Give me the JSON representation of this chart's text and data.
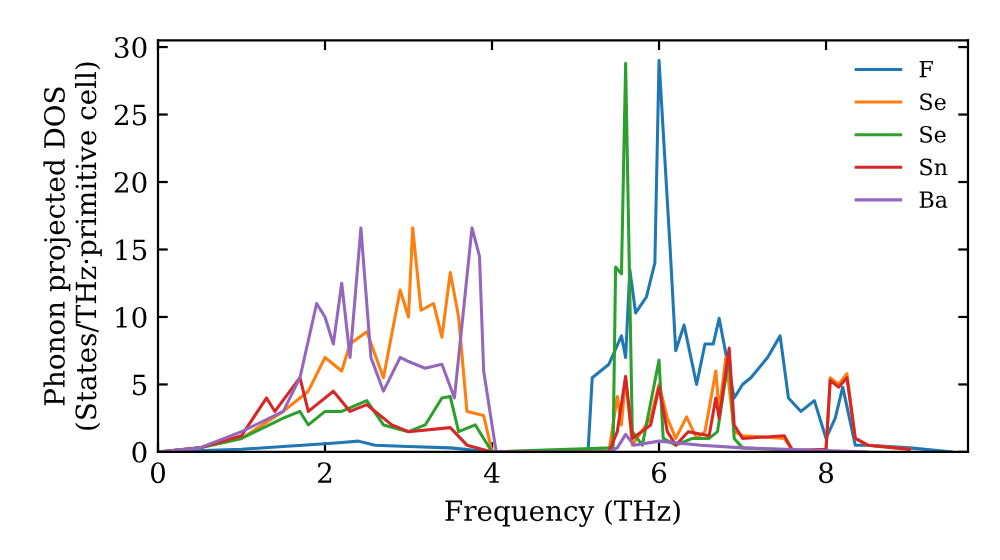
{
  "chart_data": {
    "type": "line",
    "xlabel": "Frequency (THz)",
    "ylabel": "Phonon projected DOS\n(States/THz·primitive cell)",
    "xlim": [
      0,
      9.7
    ],
    "xticks": [
      0,
      2,
      4,
      6,
      8
    ],
    "ylim": [
      0,
      30.5
    ],
    "yticks": [
      0,
      5,
      10,
      15,
      20,
      25,
      30
    ],
    "legend": "top right",
    "grid": false,
    "marker": "none",
    "line_style": "solid",
    "series": [
      {
        "name": "F",
        "color": "#1f77b4",
        "x": [
          0,
          1.0,
          1.5,
          2.0,
          2.2,
          2.4,
          2.6,
          3.0,
          3.5,
          4.0,
          5.15,
          5.2,
          5.4,
          5.55,
          5.6,
          5.65,
          5.72,
          5.85,
          5.95,
          6.0,
          6.13,
          6.2,
          6.3,
          6.45,
          6.55,
          6.65,
          6.72,
          6.9,
          7.0,
          7.1,
          7.3,
          7.45,
          7.55,
          7.7,
          7.86,
          8.0,
          8.11,
          8.2,
          8.35,
          8.5,
          9.0,
          9.5
        ],
        "values": [
          0,
          0.2,
          0.4,
          0.6,
          0.7,
          0.8,
          0.5,
          0.4,
          0.3,
          0,
          0,
          5.5,
          6.5,
          8.6,
          7,
          13.5,
          10.3,
          11.5,
          14,
          29,
          15.4,
          7.5,
          9.4,
          5,
          8,
          8,
          9.9,
          4,
          5,
          5.5,
          7,
          8.6,
          4,
          3,
          3.8,
          1,
          2.5,
          4.8,
          0.5,
          0.5,
          0.3,
          0
        ]
      },
      {
        "name": "Se",
        "color": "#ff7f0e",
        "x": [
          0,
          0.5,
          1.0,
          1.5,
          1.8,
          2.0,
          2.2,
          2.3,
          2.5,
          2.7,
          2.9,
          3.0,
          3.05,
          3.15,
          3.3,
          3.4,
          3.5,
          3.6,
          3.7,
          3.9,
          4.0,
          5.4,
          5.5,
          5.55,
          5.6,
          5.68,
          5.9,
          6.0,
          6.1,
          6.2,
          6.33,
          6.45,
          6.55,
          6.68,
          6.72,
          6.8,
          6.9,
          7.0,
          7.5,
          7.6,
          8.0,
          8.05,
          8.15,
          8.25,
          8.35,
          8.5,
          9.0
        ],
        "values": [
          0,
          0.3,
          1.0,
          3,
          4.5,
          7,
          6,
          8,
          8.9,
          5.5,
          12,
          10,
          16.6,
          10.5,
          11,
          8.5,
          13.3,
          10,
          3,
          2.7,
          0,
          0,
          4.1,
          2,
          5.5,
          0.5,
          2.5,
          5,
          2.5,
          1,
          2.6,
          1,
          1.5,
          6,
          3,
          7,
          1.5,
          1.2,
          1,
          0.1,
          0.1,
          5.5,
          5,
          5.8,
          1,
          0.5,
          0.2
        ]
      },
      {
        "name": "Se",
        "color": "#2ca02c",
        "x": [
          0,
          0.5,
          1.0,
          1.5,
          1.7,
          1.8,
          2.0,
          2.2,
          2.5,
          2.7,
          3.0,
          3.2,
          3.4,
          3.5,
          3.6,
          3.8,
          4.0,
          5.45,
          5.48,
          5.55,
          5.6,
          5.68,
          5.8,
          6.0,
          6.05,
          6.2,
          6.4,
          6.6,
          6.7,
          6.84,
          6.9,
          7.0,
          8.0
        ],
        "values": [
          0,
          0.3,
          1.0,
          2.5,
          3,
          2,
          3,
          3,
          3.8,
          2,
          1.5,
          2,
          4,
          4.1,
          1.5,
          2,
          0,
          0.3,
          13.7,
          13.2,
          28.8,
          1.5,
          0.5,
          6.8,
          1,
          0.5,
          1,
          1,
          1.5,
          7.2,
          1,
          0.3,
          0
        ]
      },
      {
        "name": "Sn",
        "color": "#d62728",
        "x": [
          0,
          0.5,
          1.0,
          1.3,
          1.4,
          1.7,
          1.8,
          2.1,
          2.3,
          2.5,
          2.8,
          3.0,
          3.5,
          3.7,
          4.0,
          5.4,
          5.5,
          5.6,
          5.68,
          5.9,
          6.0,
          6.1,
          6.2,
          6.35,
          6.6,
          6.68,
          6.72,
          6.84,
          6.9,
          7.0,
          7.5,
          7.6,
          8.0,
          8.05,
          8.15,
          8.25,
          8.35,
          8.5,
          9.0
        ],
        "values": [
          0,
          0.3,
          1.2,
          4,
          3,
          5.5,
          3,
          4.5,
          3,
          3.5,
          2,
          1.5,
          1.8,
          0.5,
          0,
          0,
          1.5,
          5.6,
          1,
          2,
          4.8,
          1.5,
          0.5,
          1.5,
          1.2,
          4,
          2.5,
          7.7,
          2,
          1,
          1.2,
          0.1,
          0.2,
          5.3,
          4.8,
          5.5,
          1,
          0.5,
          0.2
        ]
      },
      {
        "name": "Ba",
        "color": "#9467bd",
        "x": [
          0,
          0.5,
          1.0,
          1.5,
          1.7,
          1.9,
          2.0,
          2.1,
          2.2,
          2.3,
          2.43,
          2.55,
          2.7,
          2.9,
          3.0,
          3.2,
          3.4,
          3.55,
          3.65,
          3.76,
          3.85,
          3.9,
          4.05,
          5.4,
          5.5,
          5.6,
          5.7,
          6.0,
          6.5,
          7.0,
          8.0,
          8.5
        ],
        "values": [
          0,
          0.3,
          1.5,
          3,
          5.5,
          11,
          10,
          8,
          12.5,
          7,
          16.6,
          7,
          4.5,
          7,
          6.7,
          6.2,
          6.5,
          4,
          10,
          16.6,
          14.5,
          6,
          0,
          0,
          0.3,
          1.3,
          0.5,
          0.8,
          0.5,
          0.3,
          0.1,
          0
        ]
      }
    ]
  }
}
